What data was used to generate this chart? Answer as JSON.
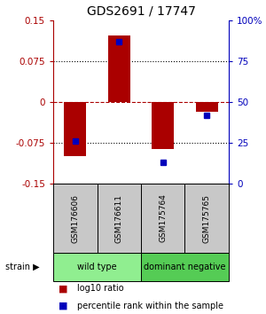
{
  "title": "GDS2691 / 17747",
  "samples": [
    "GSM176606",
    "GSM176611",
    "GSM175764",
    "GSM175765"
  ],
  "log10_ratio": [
    -0.1,
    0.122,
    -0.087,
    -0.018
  ],
  "percentile_rank": [
    26,
    87,
    13,
    42
  ],
  "ylim_left": [
    -0.15,
    0.15
  ],
  "ylim_right": [
    0,
    100
  ],
  "yticks_left": [
    -0.15,
    -0.075,
    0,
    0.075,
    0.15
  ],
  "ytick_labels_left": [
    "-0.15",
    "-0.075",
    "0",
    "0.075",
    "0.15"
  ],
  "yticks_right": [
    0,
    25,
    50,
    75,
    100
  ],
  "ytick_labels_right": [
    "0",
    "25",
    "50",
    "75",
    "100%"
  ],
  "hlines_dotted": [
    0.075,
    -0.075
  ],
  "hline_dashed": 0,
  "groups": [
    {
      "label": "wild type",
      "samples": [
        0,
        1
      ],
      "color": "#90EE90"
    },
    {
      "label": "dominant negative",
      "samples": [
        2,
        3
      ],
      "color": "#55CC55"
    }
  ],
  "bar_color": "#AA0000",
  "square_color": "#0000BB",
  "bar_width": 0.5,
  "background_color": "#ffffff",
  "title_fontsize": 10,
  "tick_fontsize": 7.5,
  "sample_fontsize": 6.5,
  "group_fontsize": 7,
  "legend_fontsize": 7
}
